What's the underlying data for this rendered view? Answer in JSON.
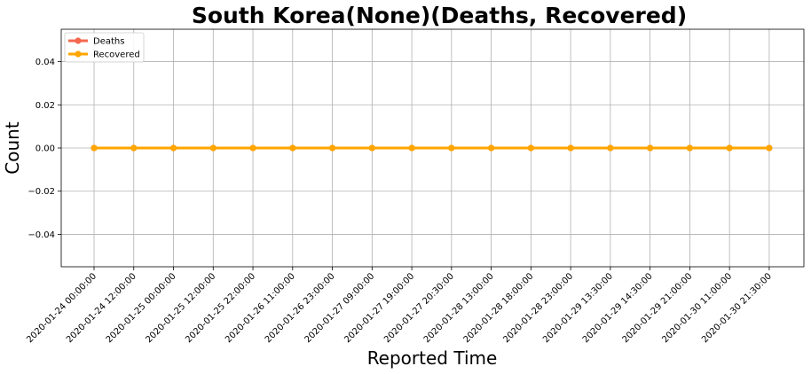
{
  "chart_data": {
    "type": "line",
    "title": "South Korea(None)(Deaths, Recovered)",
    "xlabel": "Reported Time",
    "ylabel": "Count",
    "categories": [
      "2020-01-24 00:00:00",
      "2020-01-24 12:00:00",
      "2020-01-25 00:00:00",
      "2020-01-25 12:00:00",
      "2020-01-25 22:00:00",
      "2020-01-26 11:00:00",
      "2020-01-26 23:00:00",
      "2020-01-27 09:00:00",
      "2020-01-27 19:00:00",
      "2020-01-27 20:30:00",
      "2020-01-28 13:00:00",
      "2020-01-28 18:00:00",
      "2020-01-28 23:00:00",
      "2020-01-29 13:30:00",
      "2020-01-29 14:30:00",
      "2020-01-29 21:00:00",
      "2020-01-30 11:00:00",
      "2020-01-30 21:30:00"
    ],
    "series": [
      {
        "name": "Deaths",
        "color": "#f4674e",
        "values": [
          0,
          0,
          0,
          0,
          0,
          0,
          0,
          0,
          0,
          0,
          0,
          0,
          0,
          0,
          0,
          0,
          0,
          0
        ]
      },
      {
        "name": "Recovered",
        "color": "#ffa500",
        "values": [
          0,
          0,
          0,
          0,
          0,
          0,
          0,
          0,
          0,
          0,
          0,
          0,
          0,
          0,
          0,
          0,
          0,
          0
        ]
      }
    ],
    "ylim": [
      -0.055,
      0.055
    ],
    "yticks": [
      -0.04,
      -0.02,
      0.0,
      0.02,
      0.04
    ],
    "ytick_labels": [
      "−0.04",
      "−0.02",
      "0.00",
      "0.02",
      "0.04"
    ],
    "grid": true,
    "legend_position": "top-left"
  }
}
